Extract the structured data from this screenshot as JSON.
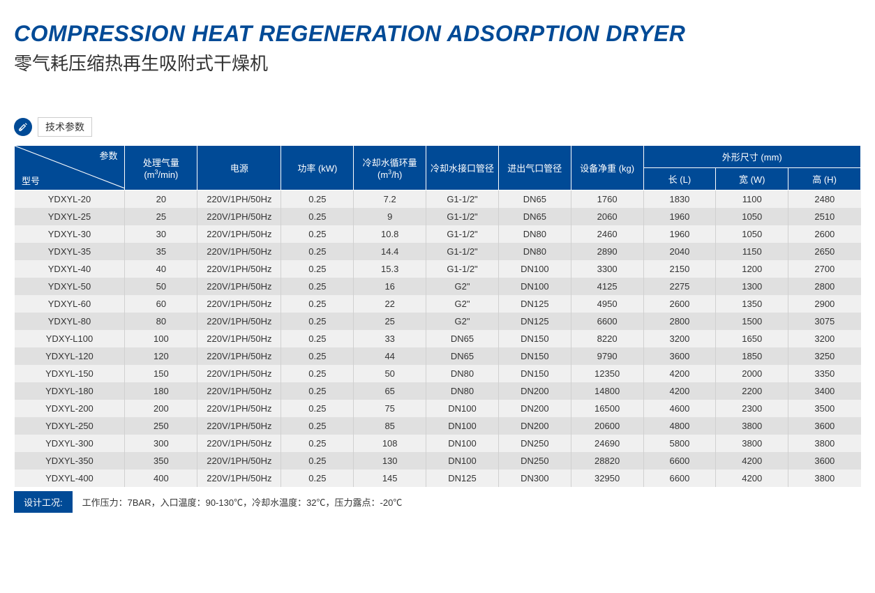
{
  "title_en": "COMPRESSION HEAT REGENERATION ADSORPTION DRYER",
  "title_cn": "零气耗压缩热再生吸附式干燥机",
  "section_label": "技术参数",
  "headers": {
    "diag_top": "参数",
    "diag_bottom": "型号",
    "capacity": "处理气量",
    "capacity_unit": "(m³/min)",
    "power_supply": "电源",
    "power": "功率 (kW)",
    "cooling_water": "冷却水循环量",
    "cooling_water_unit": "(m³/h)",
    "cooling_pipe": "冷却水接口管径",
    "inlet_pipe": "进出气口管径",
    "weight": "设备净重 (kg)",
    "dimensions": "外形尺寸 (mm)",
    "length": "长 (L)",
    "width": "宽 (W)",
    "height": "高 (H)"
  },
  "rows": [
    [
      "YDXYL-20",
      "20",
      "220V/1PH/50Hz",
      "0.25",
      "7.2",
      "G1-1/2\"",
      "DN65",
      "1760",
      "1830",
      "1100",
      "2480"
    ],
    [
      "YDXYL-25",
      "25",
      "220V/1PH/50Hz",
      "0.25",
      "9",
      "G1-1/2\"",
      "DN65",
      "2060",
      "1960",
      "1050",
      "2510"
    ],
    [
      "YDXYL-30",
      "30",
      "220V/1PH/50Hz",
      "0.25",
      "10.8",
      "G1-1/2\"",
      "DN80",
      "2460",
      "1960",
      "1050",
      "2600"
    ],
    [
      "YDXYL-35",
      "35",
      "220V/1PH/50Hz",
      "0.25",
      "14.4",
      "G1-1/2\"",
      "DN80",
      "2890",
      "2040",
      "1150",
      "2650"
    ],
    [
      "YDXYL-40",
      "40",
      "220V/1PH/50Hz",
      "0.25",
      "15.3",
      "G1-1/2\"",
      "DN100",
      "3300",
      "2150",
      "1200",
      "2700"
    ],
    [
      "YDXYL-50",
      "50",
      "220V/1PH/50Hz",
      "0.25",
      "16",
      "G2\"",
      "DN100",
      "4125",
      "2275",
      "1300",
      "2800"
    ],
    [
      "YDXYL-60",
      "60",
      "220V/1PH/50Hz",
      "0.25",
      "22",
      "G2\"",
      "DN125",
      "4950",
      "2600",
      "1350",
      "2900"
    ],
    [
      "YDXYL-80",
      "80",
      "220V/1PH/50Hz",
      "0.25",
      "25",
      "G2\"",
      "DN125",
      "6600",
      "2800",
      "1500",
      "3075"
    ],
    [
      "YDXY-L100",
      "100",
      "220V/1PH/50Hz",
      "0.25",
      "33",
      "DN65",
      "DN150",
      "8220",
      "3200",
      "1650",
      "3200"
    ],
    [
      "YDXYL-120",
      "120",
      "220V/1PH/50Hz",
      "0.25",
      "44",
      "DN65",
      "DN150",
      "9790",
      "3600",
      "1850",
      "3250"
    ],
    [
      "YDXYL-150",
      "150",
      "220V/1PH/50Hz",
      "0.25",
      "50",
      "DN80",
      "DN150",
      "12350",
      "4200",
      "2000",
      "3350"
    ],
    [
      "YDXYL-180",
      "180",
      "220V/1PH/50Hz",
      "0.25",
      "65",
      "DN80",
      "DN200",
      "14800",
      "4200",
      "2200",
      "3400"
    ],
    [
      "YDXYL-200",
      "200",
      "220V/1PH/50Hz",
      "0.25",
      "75",
      "DN100",
      "DN200",
      "16500",
      "4600",
      "2300",
      "3500"
    ],
    [
      "YDXYL-250",
      "250",
      "220V/1PH/50Hz",
      "0.25",
      "85",
      "DN100",
      "DN200",
      "20600",
      "4800",
      "3800",
      "3600"
    ],
    [
      "YDXYL-300",
      "300",
      "220V/1PH/50Hz",
      "0.25",
      "108",
      "DN100",
      "DN250",
      "24690",
      "5800",
      "3800",
      "3800"
    ],
    [
      "YDXYL-350",
      "350",
      "220V/1PH/50Hz",
      "0.25",
      "130",
      "DN100",
      "DN250",
      "28820",
      "6600",
      "4200",
      "3600"
    ],
    [
      "YDXYL-400",
      "400",
      "220V/1PH/50Hz",
      "0.25",
      "145",
      "DN125",
      "DN300",
      "32950",
      "6600",
      "4200",
      "3800"
    ]
  ],
  "footer": {
    "label": "设计工况:",
    "text": "工作压力：7BAR，入口温度：90-130℃，冷却水温度：32℃，压力露点：-20℃"
  },
  "colors": {
    "brand": "#004a96",
    "row_odd": "#f0f0f0",
    "row_even": "#e0e0e0"
  }
}
